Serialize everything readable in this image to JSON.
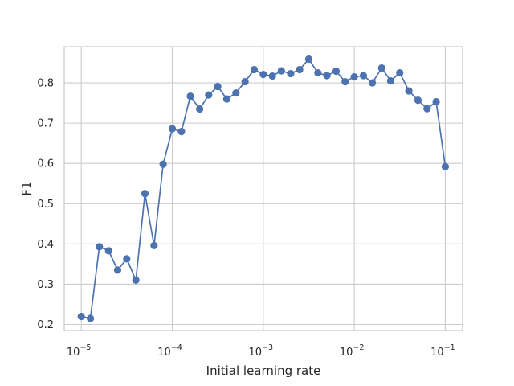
{
  "chart_data": {
    "type": "line",
    "xlabel": "Initial learning rate",
    "ylabel": "F1",
    "xscale": "log",
    "xlim": [
      6.5e-06,
      0.155
    ],
    "ylim": [
      0.185,
      0.89
    ],
    "xticks": [
      {
        "value": 1e-05,
        "base": "10",
        "exp": "−5"
      },
      {
        "value": 0.0001,
        "base": "10",
        "exp": "−4"
      },
      {
        "value": 0.001,
        "base": "10",
        "exp": "−3"
      },
      {
        "value": 0.01,
        "base": "10",
        "exp": "−2"
      },
      {
        "value": 0.1,
        "base": "10",
        "exp": "−1"
      }
    ],
    "yticks": [
      {
        "value": 0.2,
        "label": "0.2"
      },
      {
        "value": 0.3,
        "label": "0.3"
      },
      {
        "value": 0.4,
        "label": "0.4"
      },
      {
        "value": 0.5,
        "label": "0.5"
      },
      {
        "value": 0.6,
        "label": "0.6"
      },
      {
        "value": 0.7,
        "label": "0.7"
      },
      {
        "value": 0.8,
        "label": "0.8"
      }
    ],
    "grid": true,
    "color": "#4c72b0",
    "series": [
      {
        "x": [
          1e-05,
          1.26e-05,
          1.58e-05,
          2e-05,
          2.51e-05,
          3.16e-05,
          3.98e-05,
          5.01e-05,
          6.31e-05,
          7.94e-05,
          0.0001,
          0.000126,
          0.000158,
          0.0002,
          0.000251,
          0.000316,
          0.000398,
          0.000501,
          0.000631,
          0.000794,
          0.001,
          0.00126,
          0.00158,
          0.002,
          0.00251,
          0.00316,
          0.00398,
          0.00501,
          0.00631,
          0.00794,
          0.01,
          0.0126,
          0.0158,
          0.02,
          0.0251,
          0.0316,
          0.0398,
          0.0501,
          0.0631,
          0.0794,
          0.1
        ],
        "y": [
          0.22,
          0.215,
          0.393,
          0.383,
          0.335,
          0.363,
          0.31,
          0.525,
          0.396,
          0.598,
          0.686,
          0.679,
          0.767,
          0.735,
          0.77,
          0.791,
          0.76,
          0.775,
          0.803,
          0.833,
          0.821,
          0.817,
          0.83,
          0.823,
          0.833,
          0.859,
          0.825,
          0.818,
          0.829,
          0.803,
          0.815,
          0.818,
          0.8,
          0.837,
          0.805,
          0.825,
          0.78,
          0.757,
          0.736,
          0.753,
          0.592
        ]
      }
    ]
  }
}
